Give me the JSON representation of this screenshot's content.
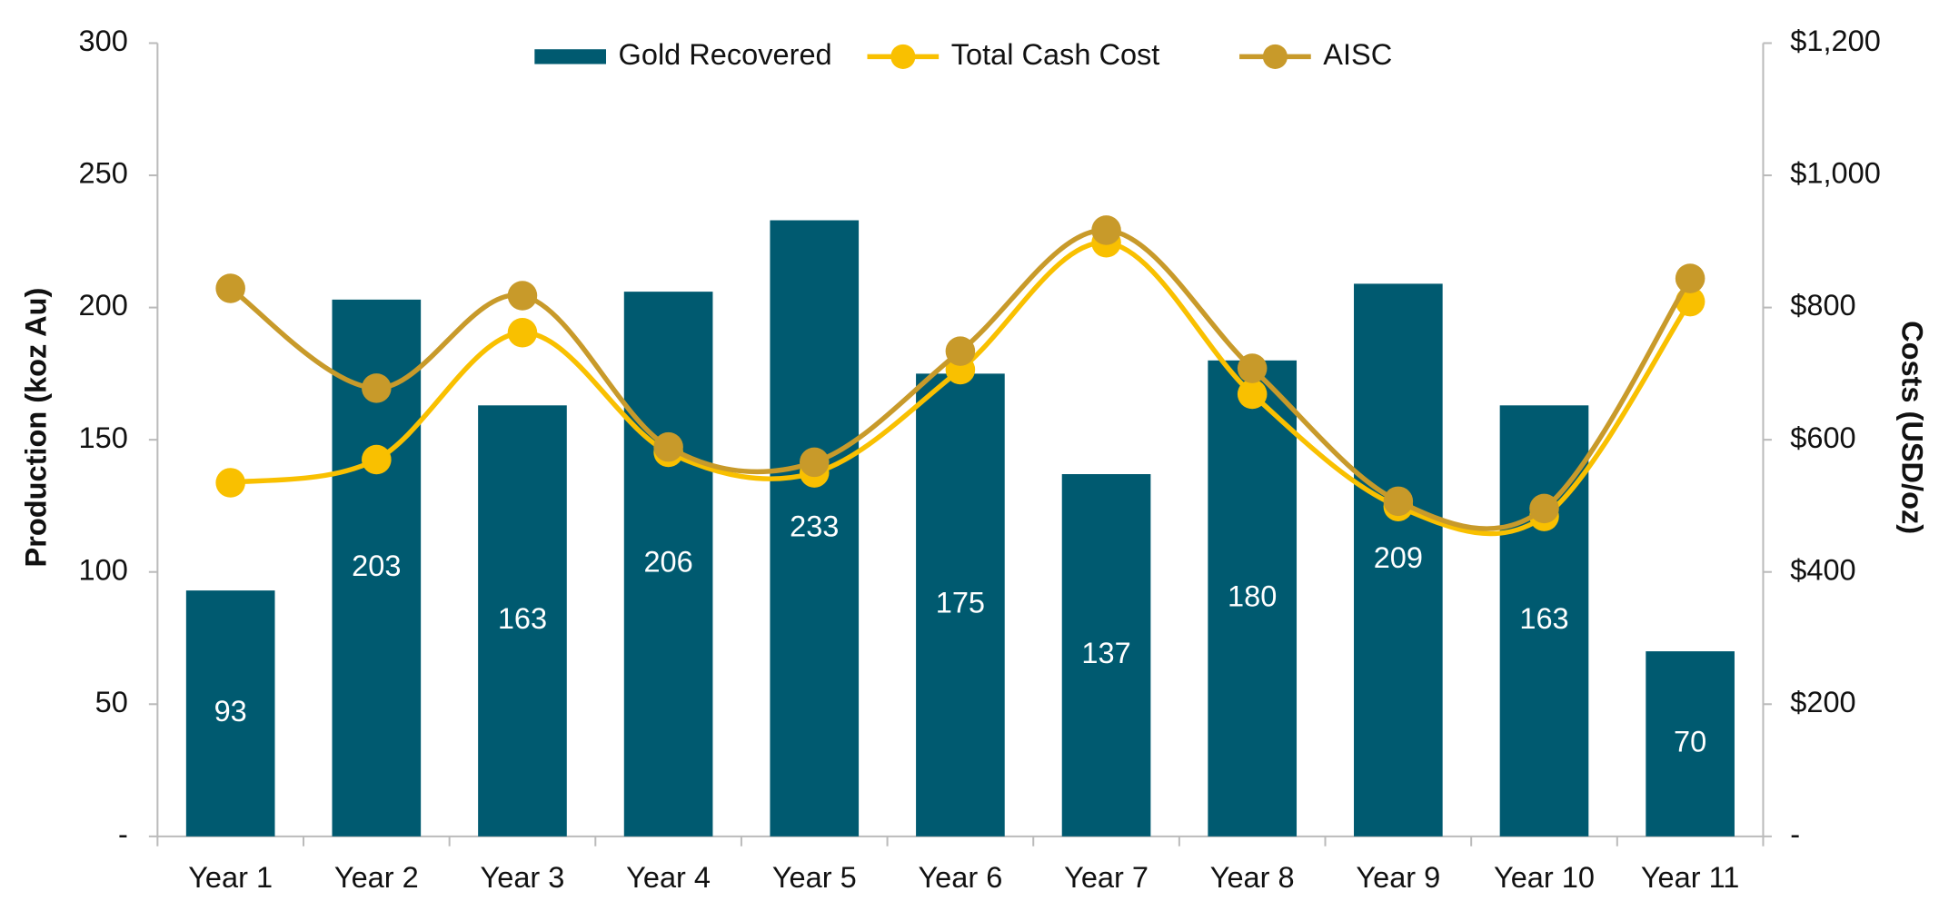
{
  "chart_data": {
    "type": "bar_line",
    "categories": [
      "Year 1",
      "Year 2",
      "Year 3",
      "Year 4",
      "Year 5",
      "Year 6",
      "Year 7",
      "Year 8",
      "Year 9",
      "Year 10",
      "Year 11"
    ],
    "series": [
      {
        "name": "Gold Recovered",
        "type": "bar",
        "color": "#005a70",
        "axis": "y",
        "values": [
          93,
          203,
          163,
          206,
          233,
          175,
          137,
          180,
          209,
          163,
          70
        ]
      },
      {
        "name": "Total Cash Cost",
        "type": "line",
        "color": "#f9c000",
        "axis": "y2",
        "values": [
          535,
          570,
          762,
          581,
          550,
          706,
          898,
          669,
          499,
          484,
          809
        ]
      },
      {
        "name": "AISC",
        "type": "line",
        "color": "#c89a2a",
        "axis": "y2",
        "values": [
          829,
          678,
          818,
          589,
          566,
          734,
          917,
          708,
          507,
          496,
          844
        ]
      }
    ],
    "y_label": "Production (koz Au)",
    "y2_label": "Costs (USD/oz)",
    "ylim": [
      0,
      300
    ],
    "yticks": [
      {
        "value": 0,
        "label": "-"
      },
      50,
      100,
      150,
      200,
      250,
      300
    ],
    "y2lim": [
      0,
      1200
    ],
    "y2ticks": [
      {
        "value": 0,
        "label": "-"
      },
      {
        "value": 200,
        "label": "$200"
      },
      {
        "value": 400,
        "label": "$400"
      },
      {
        "value": 600,
        "label": "$600"
      },
      {
        "value": 800,
        "label": "$800"
      },
      {
        "value": 1000,
        "label": "$1,000"
      },
      {
        "value": 1200,
        "label": "$1,200"
      }
    ],
    "legend": "top",
    "data_labels": true
  }
}
